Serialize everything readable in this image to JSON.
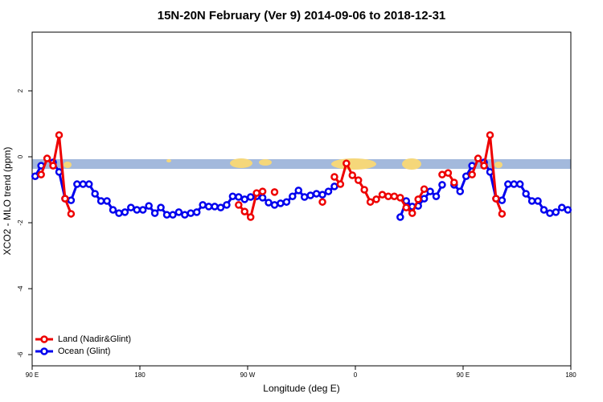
{
  "chart_data": {
    "type": "line",
    "title": "15N-20N February (Ver 9)   2014-09-06 to 2018-12-31",
    "xlabel": "Longitude (deg E)",
    "ylabel": "XCO2 - MLO trend (ppm)",
    "xlim": [
      90,
      540
    ],
    "xticks": [
      {
        "value": 90,
        "label": "90 E"
      },
      {
        "value": 180,
        "label": "180"
      },
      {
        "value": 270,
        "label": "90 W"
      },
      {
        "value": 360,
        "label": "0"
      },
      {
        "value": 450,
        "label": "90 E"
      },
      {
        "value": 540,
        "label": "180"
      }
    ],
    "ylim": [
      -6.34,
      3.78
    ],
    "yticks": [
      2,
      0,
      -2,
      -4,
      -6
    ],
    "legend": "bottom-left",
    "x": [
      92.5,
      97.5,
      102.5,
      107.5,
      112.5,
      117.5,
      122.5,
      127.5,
      132.5,
      137.5,
      142.5,
      147.5,
      152.5,
      157.5,
      162.5,
      167.5,
      172.5,
      177.5,
      182.5,
      187.5,
      192.5,
      197.5,
      202.5,
      207.5,
      212.5,
      217.5,
      222.5,
      227.5,
      232.5,
      237.5,
      242.5,
      247.5,
      252.5,
      257.5,
      262.5,
      267.5,
      272.5,
      277.5,
      282.5,
      287.5,
      292.5,
      297.5,
      302.5,
      307.5,
      312.5,
      317.5,
      322.5,
      327.5,
      332.5,
      337.5,
      342.5,
      347.5,
      352.5,
      357.5,
      362.5,
      367.5,
      372.5,
      377.5,
      382.5,
      387.5,
      392.5,
      397.5,
      402.5,
      407.5,
      412.5,
      417.5,
      422.5,
      427.5,
      432.5,
      437.5,
      442.5,
      447.5,
      452.5,
      457.5,
      462.5,
      467.5,
      472.5,
      477.5,
      482.5,
      487.5,
      492.5,
      497.5,
      502.5,
      507.5,
      512.5,
      517.5,
      522.5,
      527.5,
      532.5,
      537.5
    ],
    "series": [
      {
        "name": "Ocean (Glint)",
        "color": "#0000ee",
        "values": [
          -0.59,
          -0.27,
          null,
          -0.17,
          -0.46,
          -1.27,
          -1.32,
          -0.83,
          -0.83,
          -0.83,
          -1.12,
          -1.34,
          -1.34,
          -1.61,
          -1.71,
          -1.68,
          -1.54,
          -1.61,
          -1.61,
          -1.49,
          -1.71,
          -1.54,
          -1.76,
          -1.76,
          -1.68,
          -1.76,
          -1.71,
          -1.68,
          -1.46,
          -1.51,
          -1.51,
          -1.54,
          -1.46,
          -1.2,
          -1.22,
          -1.29,
          -1.22,
          -1.2,
          -1.24,
          -1.39,
          -1.46,
          -1.41,
          -1.37,
          -1.2,
          -1.02,
          -1.22,
          -1.17,
          -1.12,
          -1.15,
          -1.05,
          -0.9,
          null,
          null,
          null,
          null,
          null,
          null,
          null,
          null,
          null,
          null,
          -1.83,
          -1.34,
          -1.51,
          -1.49,
          -1.27,
          -1.05,
          -1.2,
          -0.85,
          null,
          -0.85,
          -1.05,
          -0.59,
          -0.27,
          null,
          -0.17,
          -0.46,
          -1.27,
          -1.32,
          -0.83,
          -0.83,
          -0.83,
          -1.12,
          -1.34,
          -1.34,
          -1.61,
          -1.71,
          -1.68,
          -1.54,
          -1.61
        ]
      },
      {
        "name": "Land (Nadir&Glint)",
        "color": "#ee0000",
        "values": [
          null,
          -0.54,
          -0.05,
          -0.27,
          0.66,
          -1.27,
          -1.73,
          null,
          null,
          null,
          null,
          null,
          null,
          null,
          null,
          null,
          null,
          null,
          null,
          null,
          null,
          null,
          null,
          null,
          null,
          null,
          null,
          null,
          null,
          null,
          null,
          null,
          null,
          null,
          -1.46,
          -1.66,
          -1.83,
          -1.1,
          -1.05,
          null,
          -1.07,
          null,
          null,
          null,
          null,
          null,
          null,
          null,
          -1.37,
          null,
          -0.61,
          -0.83,
          -0.2,
          -0.56,
          -0.71,
          -1.0,
          -1.37,
          -1.29,
          -1.15,
          -1.2,
          -1.2,
          -1.24,
          -1.54,
          -1.71,
          -1.29,
          -0.98,
          null,
          null,
          -0.54,
          -0.49,
          -0.78,
          null,
          null,
          -0.54,
          -0.05,
          -0.27,
          0.66,
          -1.27,
          -1.73,
          null,
          null,
          null,
          null,
          null,
          null,
          null,
          null,
          null,
          null,
          null
        ]
      }
    ]
  }
}
